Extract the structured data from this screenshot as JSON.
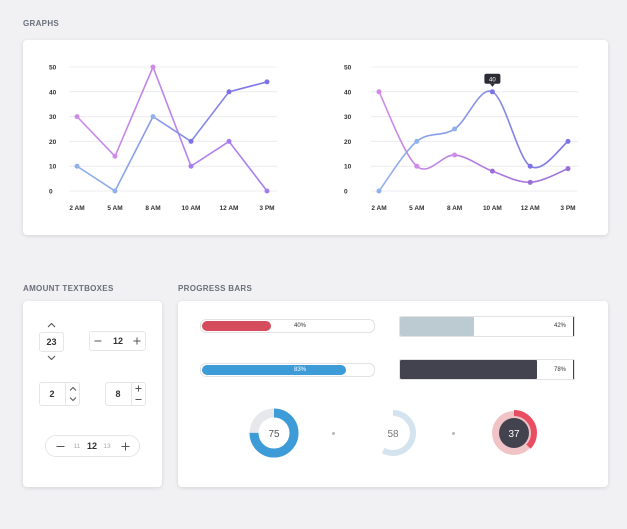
{
  "sections": {
    "graphs": "GRAPHS",
    "amount_textboxes": "AMOUNT TEXTBOXES",
    "progress_bars": "PROGRESS BARS"
  },
  "colors": {
    "purple_dark": "#7d73e8",
    "purple_light": "#cf8be8",
    "blue_light": "#8fb2ea",
    "red": "#d54c5d",
    "blue": "#3d9cd8",
    "gray_blue": "#bccbd2",
    "dark": "#43424f",
    "pink": "#f0c4c6"
  },
  "chart_data": [
    {
      "type": "line",
      "categories": [
        "2 AM",
        "5 AM",
        "8 AM",
        "10 AM",
        "12 AM",
        "3 PM"
      ],
      "ylim": [
        0,
        50
      ],
      "yticks": [
        "0",
        "10",
        "20",
        "30",
        "40",
        "50"
      ],
      "series": [
        {
          "values": [
            30,
            14,
            50,
            10,
            20,
            0
          ],
          "color": "#cf8be8",
          "color2": "#a67df0"
        },
        {
          "values": [
            10,
            0,
            30,
            20,
            40,
            44
          ],
          "color": "#8fb2ea",
          "color2": "#7d73e8"
        }
      ],
      "curve": "linear"
    },
    {
      "type": "line",
      "categories": [
        "2 AM",
        "5 AM",
        "8 AM",
        "10 AM",
        "12 AM",
        "3 PM"
      ],
      "ylim": [
        0,
        50
      ],
      "yticks": [
        "0",
        "10",
        "20",
        "30",
        "40",
        "50"
      ],
      "series": [
        {
          "values": [
            40,
            10,
            14.5,
            8,
            3.5,
            9
          ],
          "color": "#cf8be8",
          "color2": "#9a6ed8"
        },
        {
          "values": [
            0,
            20,
            25,
            40,
            10,
            20
          ],
          "color": "#8fb2ea",
          "color2": "#7d73e8"
        }
      ],
      "curve": "smooth",
      "tooltip": "40"
    }
  ],
  "amount": {
    "vertical_stepper": "23",
    "horizontal_stepper": "12",
    "side_stepper": "2",
    "side_stepper_right": "8",
    "scroller_prev": "11",
    "scroller_current": "12",
    "scroller_next": "13"
  },
  "progress": {
    "bar1": {
      "value": 0.4,
      "label": "40%"
    },
    "bar2": {
      "value": 0.42,
      "label": "42%"
    },
    "bar3": {
      "value": 0.83,
      "label": "83%"
    },
    "bar4": {
      "value": 0.78,
      "label": "78%"
    },
    "donut1": {
      "value": 0.75,
      "label": "75"
    },
    "donut2": {
      "value": 0.58,
      "label": "58"
    },
    "donut3": {
      "value": 0.37,
      "label": "37"
    }
  }
}
